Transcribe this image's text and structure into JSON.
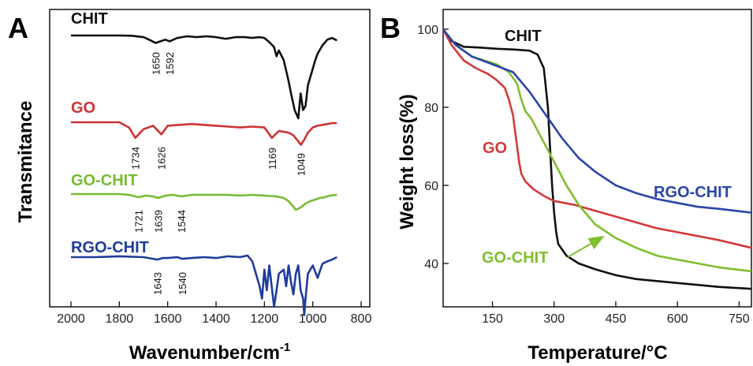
{
  "chart_data": [
    {
      "type": "line",
      "panel": "A",
      "xlabel": "Wavenumber/cm",
      "xlabel_sup": "-1",
      "ylabel": "Transmitance",
      "xlim": [
        2000,
        800
      ],
      "xticks": [
        "2000",
        "1800",
        "1600",
        "1400",
        "1200",
        "1000",
        "800"
      ],
      "series": [
        {
          "name": "CHIT",
          "color": "#111111",
          "x": [
            2000,
            1900,
            1800,
            1750,
            1700,
            1670,
            1650,
            1630,
            1610,
            1592,
            1560,
            1520,
            1480,
            1440,
            1400,
            1360,
            1320,
            1280,
            1250,
            1220,
            1200,
            1180,
            1160,
            1150,
            1140,
            1120,
            1100,
            1090,
            1075,
            1060,
            1050,
            1040,
            1030,
            1020,
            1010,
            1000,
            990,
            980,
            960,
            940,
            920,
            900
          ],
          "y": [
            0,
            0,
            0,
            0.3,
            2,
            6,
            9,
            7,
            5,
            7,
            3,
            1,
            2,
            1,
            2,
            4,
            2,
            2,
            3,
            2,
            3,
            8,
            14,
            25,
            18,
            30,
            55,
            70,
            90,
            100,
            70,
            90,
            85,
            60,
            50,
            40,
            30,
            22,
            12,
            5,
            3,
            6
          ]
        },
        {
          "name": "GO",
          "color": "#cc3333",
          "x": [
            2000,
            1900,
            1800,
            1760,
            1734,
            1700,
            1660,
            1626,
            1600,
            1550,
            1500,
            1450,
            1400,
            1350,
            1300,
            1250,
            1200,
            1169,
            1140,
            1100,
            1080,
            1060,
            1049,
            1035,
            1020,
            1000,
            980,
            960,
            940,
            920,
            900
          ],
          "y": [
            0,
            0,
            0,
            6,
            18,
            8,
            4,
            14,
            4,
            3,
            2,
            3,
            4,
            5,
            6,
            5,
            6,
            18,
            10,
            12,
            15,
            22,
            26,
            20,
            12,
            6,
            4,
            3,
            2,
            1,
            1
          ]
        },
        {
          "name": "GO-CHIT",
          "color": "#77bb33",
          "x": [
            2000,
            1900,
            1800,
            1760,
            1721,
            1690,
            1660,
            1639,
            1610,
            1580,
            1544,
            1500,
            1450,
            1400,
            1350,
            1300,
            1250,
            1200,
            1150,
            1120,
            1100,
            1080,
            1070,
            1050,
            1030,
            1010,
            990,
            970,
            950,
            930,
            900
          ],
          "y": [
            0,
            0,
            0,
            1,
            4,
            2,
            3,
            5,
            2,
            1,
            3,
            1,
            1,
            1,
            1,
            2,
            1,
            2,
            3,
            5,
            9,
            16,
            20,
            17,
            12,
            9,
            7,
            5,
            4,
            2,
            1
          ]
        },
        {
          "name": "RGO-CHIT",
          "color": "#1e3c9c",
          "x": [
            2000,
            1900,
            1800,
            1700,
            1660,
            1643,
            1620,
            1600,
            1560,
            1540,
            1500,
            1450,
            1400,
            1350,
            1300,
            1270,
            1250,
            1230,
            1220,
            1210,
            1200,
            1190,
            1180,
            1160,
            1150,
            1140,
            1120,
            1110,
            1100,
            1090,
            1080,
            1070,
            1060,
            1050,
            1040,
            1035,
            1030,
            1020,
            1000,
            980,
            960,
            940,
            920,
            900
          ],
          "y": [
            0,
            0,
            -1,
            0,
            2,
            3,
            1,
            1,
            0,
            2,
            1,
            0,
            1,
            -1,
            0,
            -2,
            5,
            25,
            35,
            50,
            15,
            40,
            10,
            60,
            40,
            20,
            15,
            35,
            10,
            30,
            45,
            20,
            10,
            40,
            50,
            70,
            50,
            20,
            10,
            25,
            8,
            5,
            3,
            0
          ]
        }
      ],
      "peak_labels": {
        "CHIT": [
          "1650",
          "1592"
        ],
        "GO": [
          "1734",
          "1626",
          "1169",
          "1049"
        ],
        "GO-CHIT": [
          "1721",
          "1639",
          "1544"
        ],
        "RGO-CHIT": [
          "1643",
          "1540"
        ]
      }
    },
    {
      "type": "line",
      "panel": "B",
      "xlabel": "Temperature/°C",
      "ylabel": "Weight loss(%)",
      "xlim": [
        30,
        780
      ],
      "ylim": [
        30,
        102
      ],
      "xticks": [
        "150",
        "300",
        "450",
        "600",
        "750"
      ],
      "yticks": [
        "40",
        "60",
        "80",
        "100"
      ],
      "series": [
        {
          "name": "CHIT",
          "color": "#111111",
          "x": [
            30,
            50,
            80,
            120,
            160,
            200,
            240,
            260,
            275,
            285,
            290,
            295,
            300,
            305,
            310,
            330,
            360,
            400,
            450,
            500,
            550,
            600,
            650,
            700,
            780
          ],
          "y": [
            100,
            97,
            95.5,
            95.3,
            95,
            94.8,
            94.5,
            93.5,
            90,
            80,
            70,
            60,
            53,
            48,
            45,
            42,
            40,
            38.5,
            37,
            36,
            35.5,
            35,
            34.5,
            34,
            33.5
          ]
        },
        {
          "name": "GO",
          "color": "#d23a3a",
          "x": [
            30,
            50,
            80,
            110,
            140,
            160,
            180,
            190,
            200,
            205,
            210,
            215,
            220,
            230,
            250,
            280,
            300,
            350,
            400,
            450,
            500,
            550,
            600,
            650,
            700,
            780
          ],
          "y": [
            100,
            96,
            92,
            90,
            88.5,
            87,
            85,
            82,
            78,
            74,
            70,
            66,
            63,
            61,
            59,
            57,
            56,
            55,
            53.5,
            52,
            50.5,
            49,
            48,
            47,
            46,
            44
          ]
        },
        {
          "name": "GO-CHIT",
          "color": "#7fbf2e",
          "x": [
            30,
            60,
            100,
            130,
            160,
            190,
            210,
            220,
            230,
            245,
            260,
            280,
            300,
            330,
            360,
            400,
            450,
            500,
            550,
            600,
            650,
            700,
            780
          ],
          "y": [
            100,
            96,
            93,
            92,
            91,
            89,
            86,
            82,
            79,
            77,
            74,
            70,
            66,
            60,
            55,
            50,
            46.5,
            44,
            42,
            41,
            40,
            39,
            38
          ]
        },
        {
          "name": "RGO-CHIT",
          "color": "#2a45a8",
          "x": [
            30,
            60,
            100,
            150,
            200,
            240,
            280,
            320,
            360,
            400,
            450,
            500,
            550,
            600,
            650,
            700,
            780
          ],
          "y": [
            100,
            96,
            93,
            91,
            89,
            84,
            78,
            72,
            67,
            63.5,
            60,
            58,
            56.5,
            55.5,
            54.5,
            54,
            53
          ]
        }
      ],
      "arrow_label": "GO-CHIT"
    }
  ],
  "labels": {
    "panel_a": "A",
    "panel_b": "B"
  }
}
